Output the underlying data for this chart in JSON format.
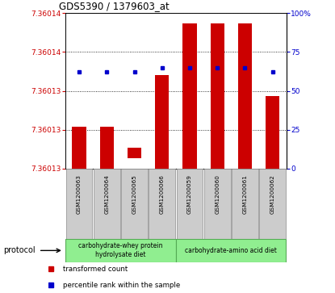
{
  "title": "GDS5390 / 1379603_at",
  "samples": [
    "GSM1200063",
    "GSM1200064",
    "GSM1200065",
    "GSM1200066",
    "GSM1200059",
    "GSM1200060",
    "GSM1200061",
    "GSM1200062"
  ],
  "transformed_count": [
    7.36013,
    7.36013,
    7.360128,
    7.360135,
    7.36014,
    7.36014,
    7.36014,
    7.360133
  ],
  "transformed_count_bottom": [
    7.360126,
    7.360126,
    7.360127,
    7.360126,
    7.360126,
    7.360126,
    7.360126,
    7.360126
  ],
  "percentile_rank": [
    62,
    62,
    62,
    65,
    65,
    65,
    65,
    62
  ],
  "ylim_left": [
    7.360126,
    7.360141
  ],
  "ylim_right": [
    0,
    100
  ],
  "ytick_labels_left": [
    "7.36013",
    "7.36013",
    "7.36013",
    "7.36014",
    "7.36014"
  ],
  "ytick_labels_right": [
    "0",
    "25",
    "50",
    "75",
    "100%"
  ],
  "groups": [
    {
      "label": "carbohydrate-whey protein\nhydrolysate diet",
      "color": "#90ee90"
    },
    {
      "label": "carbohydrate-amino acid diet",
      "color": "#90ee90"
    }
  ],
  "bar_color": "#cc0000",
  "percentile_color": "#0000cc",
  "sample_bg": "#cccccc",
  "legend_items": [
    {
      "label": "transformed count",
      "color": "#cc0000"
    },
    {
      "label": "percentile rank within the sample",
      "color": "#0000cc"
    }
  ]
}
